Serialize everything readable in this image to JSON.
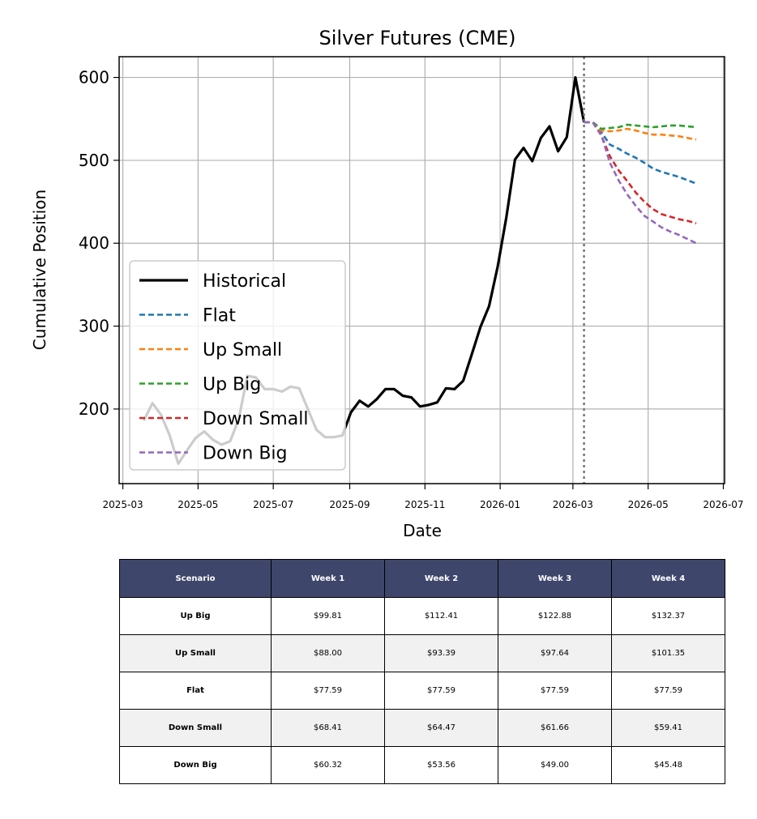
{
  "chart_data": {
    "type": "line",
    "title": "Silver Futures (CME)",
    "xlabel": "Date",
    "ylabel": "Cumulative Position",
    "xlim": [
      "2025-02-26",
      "2026-07-02"
    ],
    "ylim": [
      110,
      625
    ],
    "x_ticks": [
      "2025-03",
      "2025-05",
      "2025-07",
      "2025-09",
      "2025-11",
      "2026-01",
      "2026-03",
      "2026-05",
      "2026-07"
    ],
    "y_ticks": [
      200,
      300,
      400,
      500,
      600
    ],
    "grid": true,
    "legend_position": "lower-left",
    "forecast_start": "2026-03-10",
    "series": [
      {
        "name": "Historical",
        "color": "#000000",
        "style": "solid",
        "x": [
          "2025-03-18",
          "2025-03-25",
          "2025-04-01",
          "2025-04-08",
          "2025-04-15",
          "2025-04-22",
          "2025-04-29",
          "2025-05-06",
          "2025-05-13",
          "2025-05-20",
          "2025-05-27",
          "2025-06-03",
          "2025-06-10",
          "2025-06-17",
          "2025-06-24",
          "2025-07-01",
          "2025-07-08",
          "2025-07-15",
          "2025-07-22",
          "2025-07-29",
          "2025-08-05",
          "2025-08-12",
          "2025-08-19",
          "2025-08-26",
          "2025-09-02",
          "2025-09-09",
          "2025-09-16",
          "2025-09-23",
          "2025-09-30",
          "2025-10-07",
          "2025-10-14",
          "2025-10-21",
          "2025-10-28",
          "2025-11-04",
          "2025-11-11",
          "2025-11-18",
          "2025-11-25",
          "2025-12-02",
          "2025-12-09",
          "2025-12-16",
          "2025-12-23",
          "2025-12-30",
          "2026-01-06",
          "2026-01-13",
          "2026-01-20",
          "2026-01-27",
          "2026-02-03",
          "2026-02-10",
          "2026-02-17",
          "2026-02-24",
          "2026-03-03",
          "2026-03-10"
        ],
        "values": [
          186,
          207,
          193,
          168,
          134,
          150,
          165,
          173,
          163,
          157,
          161,
          188,
          240,
          238,
          224,
          224,
          221,
          227,
          225,
          200,
          175,
          166,
          166,
          168,
          196,
          210,
          203,
          212,
          224,
          224,
          216,
          214,
          203,
          205,
          208,
          225,
          224,
          234,
          266,
          299,
          324,
          372,
          431,
          501,
          515,
          499,
          527,
          541,
          511,
          528,
          600,
          546
        ]
      },
      {
        "name": "Flat",
        "color": "#1f77b4",
        "style": "dashed",
        "x": [
          "2026-03-10",
          "2026-03-17",
          "2026-03-24",
          "2026-03-31",
          "2026-04-07",
          "2026-04-14",
          "2026-04-21",
          "2026-04-28",
          "2026-05-05",
          "2026-05-12",
          "2026-05-19",
          "2026-05-26",
          "2026-06-02",
          "2026-06-09"
        ],
        "values": [
          546,
          546,
          534,
          519,
          514,
          508,
          503,
          497,
          490,
          486,
          483,
          480,
          476,
          472
        ]
      },
      {
        "name": "Up Small",
        "color": "#ff7f0e",
        "style": "dashed",
        "x": [
          "2026-03-10",
          "2026-03-17",
          "2026-03-24",
          "2026-03-31",
          "2026-04-07",
          "2026-04-14",
          "2026-04-21",
          "2026-04-28",
          "2026-05-05",
          "2026-05-12",
          "2026-05-19",
          "2026-05-26",
          "2026-06-02",
          "2026-06-09"
        ],
        "values": [
          546,
          546,
          536,
          535,
          536,
          538,
          536,
          533,
          531,
          531,
          530,
          529,
          527,
          525
        ]
      },
      {
        "name": "Up Big",
        "color": "#2ca02c",
        "style": "dashed",
        "x": [
          "2026-03-10",
          "2026-03-17",
          "2026-03-24",
          "2026-03-31",
          "2026-04-07",
          "2026-04-14",
          "2026-04-21",
          "2026-04-28",
          "2026-05-05",
          "2026-05-12",
          "2026-05-19",
          "2026-05-26",
          "2026-06-02",
          "2026-06-09"
        ],
        "values": [
          546,
          546,
          538,
          539,
          540,
          543,
          542,
          541,
          540,
          541,
          542,
          542,
          541,
          540
        ]
      },
      {
        "name": "Down Small",
        "color": "#d62728",
        "style": "dashed",
        "x": [
          "2026-03-10",
          "2026-03-17",
          "2026-03-24",
          "2026-03-31",
          "2026-04-07",
          "2026-04-14",
          "2026-04-21",
          "2026-04-28",
          "2026-05-05",
          "2026-05-12",
          "2026-05-19",
          "2026-05-26",
          "2026-06-02",
          "2026-06-09"
        ],
        "values": [
          546,
          546,
          530,
          505,
          488,
          475,
          461,
          450,
          441,
          435,
          432,
          429,
          427,
          424
        ]
      },
      {
        "name": "Down Big",
        "color": "#9467bd",
        "style": "dashed",
        "x": [
          "2026-03-10",
          "2026-03-17",
          "2026-03-24",
          "2026-03-31",
          "2026-04-07",
          "2026-04-14",
          "2026-04-21",
          "2026-04-28",
          "2026-05-05",
          "2026-05-12",
          "2026-05-19",
          "2026-05-26",
          "2026-06-02",
          "2026-06-09"
        ],
        "values": [
          546,
          546,
          531,
          497,
          476,
          459,
          445,
          433,
          426,
          419,
          414,
          410,
          405,
          400
        ]
      }
    ]
  },
  "table": {
    "headers": [
      "Scenario",
      "Week 1",
      "Week 2",
      "Week 3",
      "Week 4"
    ],
    "rows": [
      [
        "Up Big",
        "$99.81",
        "$112.41",
        "$122.88",
        "$132.37"
      ],
      [
        "Up Small",
        "$88.00",
        "$93.39",
        "$97.64",
        "$101.35"
      ],
      [
        "Flat",
        "$77.59",
        "$77.59",
        "$77.59",
        "$77.59"
      ],
      [
        "Down Small",
        "$68.41",
        "$64.47",
        "$61.66",
        "$59.41"
      ],
      [
        "Down Big",
        "$60.32",
        "$53.56",
        "$49.00",
        "$45.48"
      ]
    ],
    "header_bg": "#3f466b",
    "shaded_row_bg": "#f1f1f1"
  }
}
